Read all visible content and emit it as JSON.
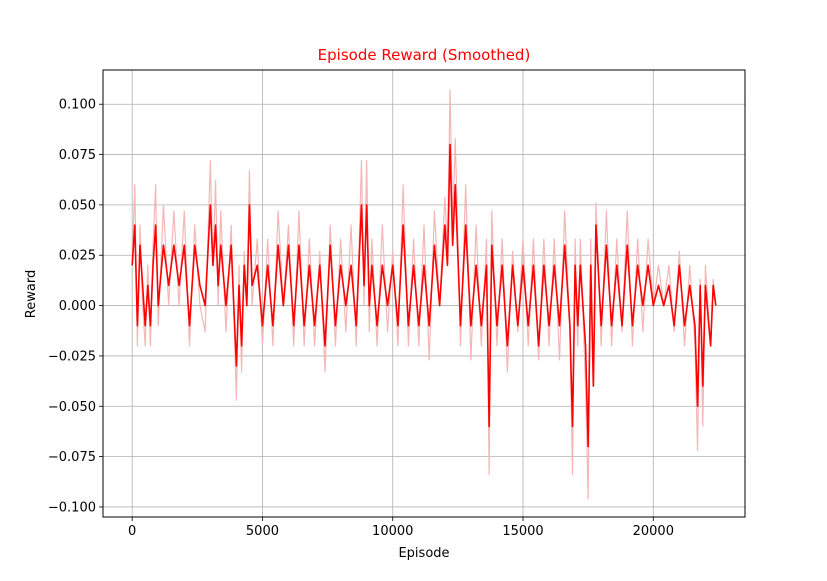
{
  "chart_data": {
    "type": "line",
    "title": "Episode Reward (Smoothed)",
    "title_color": "#ff0000",
    "xlabel": "Episode",
    "ylabel": "Reward",
    "xlim": [
      -1120,
      23520
    ],
    "ylim": [
      -0.105,
      0.117
    ],
    "grid": true,
    "xticks": [
      0,
      5000,
      10000,
      15000,
      20000
    ],
    "xtick_labels": [
      "0",
      "5000",
      "10000",
      "15000",
      "20000"
    ],
    "yticks": [
      -0.1,
      -0.075,
      -0.05,
      -0.025,
      0.0,
      0.025,
      0.05,
      0.075,
      0.1
    ],
    "ytick_labels": [
      "−0.100",
      "−0.075",
      "−0.050",
      "−0.025",
      "0.000",
      "0.025",
      "0.050",
      "0.075",
      "0.100"
    ],
    "series": [
      {
        "style": "raw",
        "color": "#f4b6b6",
        "x": [
          0,
          100,
          200,
          300,
          400,
          500,
          600,
          700,
          800,
          900,
          1000,
          1200,
          1400,
          1600,
          1800,
          2000,
          2200,
          2400,
          2600,
          2800,
          3000,
          3100,
          3200,
          3300,
          3400,
          3600,
          3800,
          4000,
          4100,
          4200,
          4300,
          4400,
          4500,
          4600,
          4800,
          5000,
          5200,
          5400,
          5600,
          5800,
          6000,
          6200,
          6400,
          6600,
          6800,
          7000,
          7200,
          7400,
          7600,
          7800,
          8000,
          8200,
          8400,
          8600,
          8800,
          8900,
          9000,
          9100,
          9200,
          9400,
          9600,
          9800,
          10000,
          10200,
          10400,
          10600,
          10800,
          11000,
          11200,
          11400,
          11600,
          11800,
          12000,
          12100,
          12200,
          12300,
          12400,
          12600,
          12800,
          13000,
          13200,
          13400,
          13600,
          13700,
          13800,
          14000,
          14200,
          14400,
          14600,
          14800,
          15000,
          15200,
          15400,
          15600,
          15800,
          16000,
          16200,
          16400,
          16600,
          16800,
          16900,
          17000,
          17100,
          17200,
          17400,
          17500,
          17600,
          17700,
          17800,
          18000,
          18200,
          18400,
          18600,
          18800,
          19000,
          19200,
          19400,
          19600,
          19800,
          20000,
          20200,
          20400,
          20600,
          20800,
          21000,
          21200,
          21400,
          21600,
          21700,
          21800,
          21900,
          22000,
          22200,
          22300,
          22400
        ],
        "y": [
          0.02,
          0.06,
          -0.02,
          0.04,
          0.0,
          -0.02,
          0.02,
          -0.02,
          0.03,
          0.06,
          -0.01,
          0.05,
          0.0,
          0.047,
          0.0,
          0.047,
          -0.02,
          0.04,
          0.0,
          -0.013,
          0.072,
          0.02,
          0.062,
          0.0,
          0.047,
          -0.013,
          0.04,
          -0.047,
          0.02,
          -0.033,
          0.027,
          0.0,
          0.067,
          0.0,
          0.033,
          -0.02,
          0.033,
          -0.02,
          0.047,
          0.0,
          0.04,
          -0.02,
          0.047,
          -0.02,
          0.033,
          -0.02,
          0.027,
          -0.033,
          0.04,
          -0.02,
          0.033,
          -0.013,
          0.04,
          -0.02,
          0.072,
          0.0,
          0.072,
          -0.013,
          0.033,
          -0.02,
          0.04,
          -0.013,
          0.027,
          -0.02,
          0.06,
          -0.02,
          0.033,
          -0.02,
          0.04,
          -0.027,
          0.047,
          0.0,
          0.054,
          0.028,
          0.107,
          0.04,
          0.083,
          -0.02,
          0.06,
          -0.027,
          0.04,
          -0.02,
          0.033,
          -0.084,
          0.047,
          -0.02,
          0.033,
          -0.033,
          0.027,
          -0.013,
          0.033,
          -0.02,
          0.033,
          -0.027,
          0.033,
          -0.02,
          0.033,
          -0.027,
          0.047,
          -0.013,
          -0.084,
          0.033,
          -0.02,
          0.033,
          -0.04,
          -0.096,
          0.033,
          -0.04,
          0.051,
          -0.02,
          0.047,
          -0.02,
          0.033,
          -0.013,
          0.047,
          -0.02,
          0.033,
          -0.013,
          0.033,
          0.0,
          0.02,
          0.0,
          0.02,
          -0.013,
          0.027,
          -0.02,
          0.02,
          -0.02,
          -0.072,
          0.013,
          -0.06,
          0.02,
          -0.02,
          0.013,
          0.0
        ]
      },
      {
        "style": "smoothed",
        "color": "#ff0000",
        "x": [
          0,
          100,
          200,
          300,
          400,
          500,
          600,
          700,
          800,
          900,
          1000,
          1200,
          1400,
          1600,
          1800,
          2000,
          2200,
          2400,
          2600,
          2800,
          3000,
          3100,
          3200,
          3300,
          3400,
          3600,
          3800,
          4000,
          4100,
          4200,
          4300,
          4400,
          4500,
          4600,
          4800,
          5000,
          5200,
          5400,
          5600,
          5800,
          6000,
          6200,
          6400,
          6600,
          6800,
          7000,
          7200,
          7400,
          7600,
          7800,
          8000,
          8200,
          8400,
          8600,
          8800,
          8900,
          9000,
          9100,
          9200,
          9400,
          9600,
          9800,
          10000,
          10200,
          10400,
          10600,
          10800,
          11000,
          11200,
          11400,
          11600,
          11800,
          12000,
          12100,
          12200,
          12300,
          12400,
          12600,
          12800,
          13000,
          13200,
          13400,
          13600,
          13700,
          13800,
          14000,
          14200,
          14400,
          14600,
          14800,
          15000,
          15200,
          15400,
          15600,
          15800,
          16000,
          16200,
          16400,
          16600,
          16800,
          16900,
          17000,
          17100,
          17200,
          17400,
          17500,
          17600,
          17700,
          17800,
          18000,
          18200,
          18400,
          18600,
          18800,
          19000,
          19200,
          19400,
          19600,
          19800,
          20000,
          20200,
          20400,
          20600,
          20800,
          21000,
          21200,
          21400,
          21600,
          21700,
          21800,
          21900,
          22000,
          22200,
          22300,
          22400
        ],
        "y": [
          0.02,
          0.04,
          -0.01,
          0.03,
          0.01,
          -0.01,
          0.01,
          -0.01,
          0.02,
          0.04,
          0.0,
          0.03,
          0.01,
          0.03,
          0.01,
          0.03,
          -0.01,
          0.03,
          0.01,
          0.0,
          0.05,
          0.02,
          0.04,
          0.01,
          0.03,
          0.0,
          0.03,
          -0.03,
          0.01,
          -0.02,
          0.02,
          0.0,
          0.05,
          0.01,
          0.02,
          -0.01,
          0.02,
          -0.01,
          0.03,
          0.0,
          0.03,
          -0.01,
          0.03,
          -0.01,
          0.02,
          -0.01,
          0.02,
          -0.02,
          0.03,
          -0.01,
          0.02,
          0.0,
          0.02,
          -0.01,
          0.05,
          0.01,
          0.05,
          0.0,
          0.02,
          -0.01,
          0.02,
          0.0,
          0.02,
          -0.01,
          0.04,
          -0.01,
          0.02,
          -0.01,
          0.02,
          -0.01,
          0.03,
          0.0,
          0.04,
          0.02,
          0.08,
          0.03,
          0.06,
          -0.01,
          0.04,
          -0.01,
          0.02,
          -0.01,
          0.02,
          -0.06,
          0.03,
          -0.01,
          0.02,
          -0.02,
          0.02,
          -0.01,
          0.02,
          -0.01,
          0.02,
          -0.02,
          0.02,
          -0.01,
          0.02,
          -0.01,
          0.03,
          -0.01,
          -0.06,
          0.02,
          -0.01,
          0.02,
          -0.02,
          -0.07,
          0.02,
          -0.04,
          0.04,
          -0.01,
          0.03,
          -0.01,
          0.02,
          -0.01,
          0.03,
          -0.01,
          0.02,
          0.0,
          0.02,
          0.0,
          0.01,
          0.0,
          0.01,
          -0.01,
          0.02,
          -0.01,
          0.01,
          -0.01,
          -0.05,
          0.01,
          -0.04,
          0.01,
          -0.02,
          0.01,
          0.0
        ]
      }
    ]
  }
}
